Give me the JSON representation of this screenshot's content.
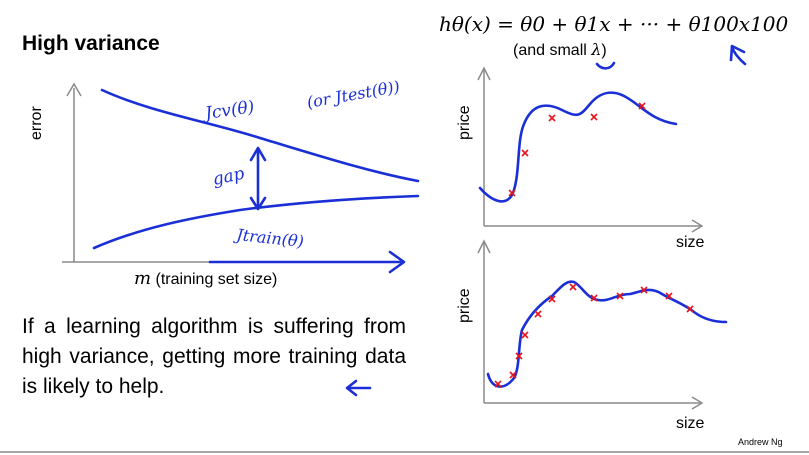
{
  "title": "High variance",
  "hypothesis_formula": "hθ(x) = θ0 + θ1x + ··· + θ100x100",
  "lambda_note": {
    "prefix": "(and small ",
    "symbol": "λ",
    "suffix": ")"
  },
  "learning_curve": {
    "ylabel": "error",
    "xlabel_symbol": "m",
    "xlabel_text": "(training set size)",
    "annotations": {
      "jcv": "Jcv(θ)",
      "jtest": "(or Jtest(θ))",
      "gap": "gap",
      "jtrain": "Jtrain(θ)"
    }
  },
  "body_text": "If a learning algorithm is suffering from high variance, getting more training data is likely to help.",
  "plot_top": {
    "ylabel": "price",
    "xlabel": "size"
  },
  "plot_bottom": {
    "ylabel": "price",
    "xlabel": "size"
  },
  "credit": "Andrew Ng",
  "colors": {
    "ink": "#1a2fd6",
    "marker": "#e8141c",
    "text": "#000000"
  }
}
